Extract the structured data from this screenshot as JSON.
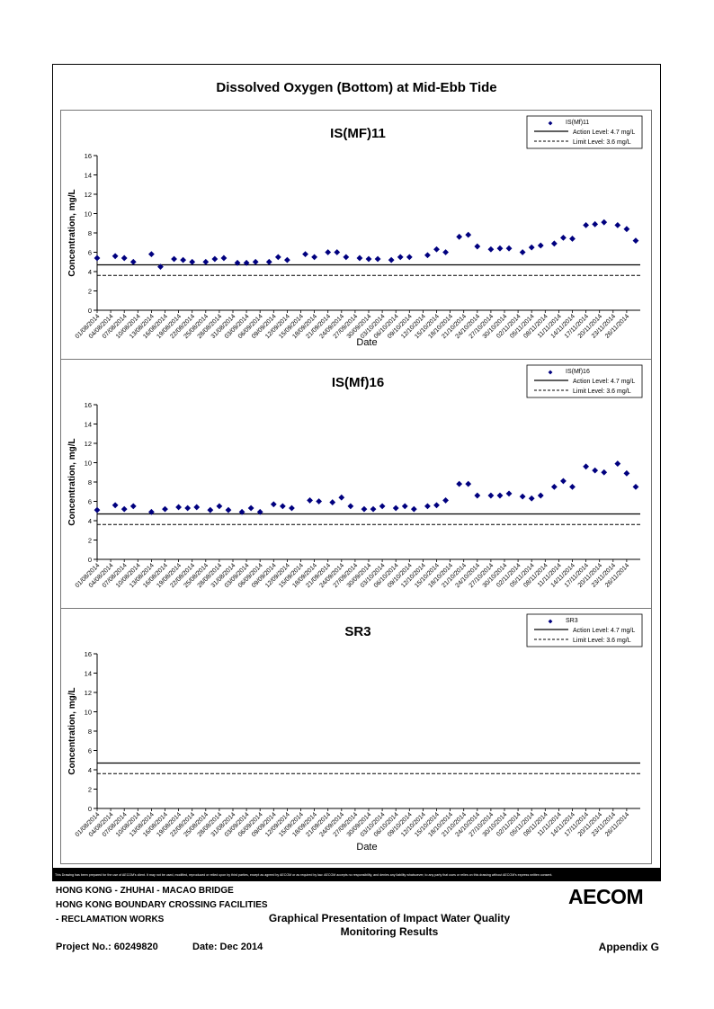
{
  "page": {
    "title": "Dissolved Oxygen (Bottom) at Mid-Ebb Tide",
    "disclaimer": "This Drawing has been prepared for the use of AECOM's client. It may not be used, modified, reproduced or relied upon by third parties, except as agreed by AECOM or as required by law. AECOM accepts no responsibility, and denies any liability whatsoever, to any party that uses or relies on this drawing without AECOM's express written consent.",
    "footer": {
      "line1": "HONG KONG - ZHUHAI - MACAO BRIDGE",
      "line2": "HONG KONG BOUNDARY CROSSING FACILITIES",
      "line3": "- RECLAMATION WORKS",
      "center_line1": "Graphical Presentation of Impact Water Quality",
      "center_line2": "Monitoring Results",
      "project_no": "Project No.: 60249820",
      "date": "Date: Dec 2014",
      "appendix": "Appendix G",
      "logo": "AECOM"
    },
    "colors": {
      "marker": "#00007f",
      "line": "#000000",
      "border": "#777777"
    }
  },
  "chart_data": [
    {
      "type": "scatter",
      "title": "IS(MF)11",
      "xlabel": "Date",
      "ylabel": "Concentration, mg/L",
      "ylim": [
        0,
        16
      ],
      "yticks": [
        0,
        2,
        4,
        6,
        8,
        10,
        12,
        14,
        16
      ],
      "xlim": [
        "2014-08-01",
        "2014-11-29"
      ],
      "x_tick_labels": [
        "01/08/2014",
        "04/08/2014",
        "07/08/2014",
        "10/08/2014",
        "13/08/2014",
        "16/08/2014",
        "19/08/2014",
        "22/08/2014",
        "25/08/2014",
        "28/08/2014",
        "31/08/2014",
        "03/09/2014",
        "06/09/2014",
        "09/09/2014",
        "12/09/2014",
        "15/09/2014",
        "18/09/2014",
        "21/09/2014",
        "24/09/2014",
        "27/09/2014",
        "30/09/2014",
        "03/10/2014",
        "06/10/2014",
        "09/10/2014",
        "12/10/2014",
        "15/10/2014",
        "18/10/2014",
        "21/10/2014",
        "24/10/2014",
        "27/10/2014",
        "30/10/2014",
        "02/11/2014",
        "05/11/2014",
        "08/11/2014",
        "11/11/2014",
        "14/11/2014",
        "17/11/2014",
        "20/11/2014",
        "23/11/2014",
        "26/11/2014"
      ],
      "legend_position": "top-right",
      "legend": [
        "IS(Mf)11",
        "Action Level: 4.7 mg/L",
        "Limit Level: 3.6 mg/L"
      ],
      "action_level": 4.7,
      "limit_level": 3.6,
      "series": [
        {
          "name": "IS(Mf)11",
          "marker": "diamond",
          "x": [
            "2014-08-01",
            "2014-08-05",
            "2014-08-07",
            "2014-08-09",
            "2014-08-13",
            "2014-08-15",
            "2014-08-18",
            "2014-08-20",
            "2014-08-22",
            "2014-08-25",
            "2014-08-27",
            "2014-08-29",
            "2014-09-01",
            "2014-09-03",
            "2014-09-05",
            "2014-09-08",
            "2014-09-10",
            "2014-09-12",
            "2014-09-16",
            "2014-09-18",
            "2014-09-21",
            "2014-09-23",
            "2014-09-25",
            "2014-09-28",
            "2014-09-30",
            "2014-10-02",
            "2014-10-05",
            "2014-10-07",
            "2014-10-09",
            "2014-10-13",
            "2014-10-15",
            "2014-10-17",
            "2014-10-20",
            "2014-10-22",
            "2014-10-24",
            "2014-10-27",
            "2014-10-29",
            "2014-10-31",
            "2014-11-03",
            "2014-11-05",
            "2014-11-07",
            "2014-11-10",
            "2014-11-12",
            "2014-11-14",
            "2014-11-17",
            "2014-11-19",
            "2014-11-21",
            "2014-11-24",
            "2014-11-26",
            "2014-11-28"
          ],
          "y": [
            5.4,
            5.6,
            5.4,
            5.0,
            5.8,
            4.5,
            5.3,
            5.2,
            5.0,
            5.0,
            5.3,
            5.4,
            4.9,
            4.9,
            5.0,
            5.0,
            5.5,
            5.2,
            5.8,
            5.5,
            6.0,
            6.0,
            5.5,
            5.4,
            5.3,
            5.3,
            5.2,
            5.5,
            5.5,
            5.7,
            6.3,
            6.0,
            7.6,
            7.8,
            6.6,
            6.3,
            6.4,
            6.4,
            6.0,
            6.5,
            6.7,
            6.9,
            7.5,
            7.4,
            8.8,
            8.9,
            9.1,
            8.8,
            8.4,
            7.2
          ]
        }
      ]
    },
    {
      "type": "scatter",
      "title": "IS(Mf)16",
      "xlabel": "",
      "ylabel": "Concentration, mg/L",
      "ylim": [
        0,
        16
      ],
      "yticks": [
        0,
        2,
        4,
        6,
        8,
        10,
        12,
        14,
        16
      ],
      "xlim": [
        "2014-08-01",
        "2014-11-29"
      ],
      "x_tick_labels": [
        "01/08/2014",
        "04/08/2014",
        "07/08/2014",
        "10/08/2014",
        "13/08/2014",
        "16/08/2014",
        "19/08/2014",
        "22/08/2014",
        "25/08/2014",
        "28/08/2014",
        "31/08/2014",
        "03/09/2014",
        "06/09/2014",
        "09/09/2014",
        "12/09/2014",
        "15/09/2014",
        "18/09/2014",
        "21/09/2014",
        "24/09/2014",
        "27/09/2014",
        "30/09/2014",
        "03/10/2014",
        "06/10/2014",
        "09/10/2014",
        "12/10/2014",
        "15/10/2014",
        "18/10/2014",
        "21/10/2014",
        "24/10/2014",
        "27/10/2014",
        "30/10/2014",
        "02/11/2014",
        "05/11/2014",
        "08/11/2014",
        "11/11/2014",
        "14/11/2014",
        "17/11/2014",
        "20/11/2014",
        "23/11/2014",
        "26/11/2014"
      ],
      "legend_position": "top-right",
      "legend": [
        "IS(Mf)16",
        "Action Level: 4.7 mg/L",
        "Limit Level: 3.6 mg/L"
      ],
      "action_level": 4.7,
      "limit_level": 3.6,
      "series": [
        {
          "name": "IS(Mf)16",
          "marker": "diamond",
          "x": [
            "2014-08-01",
            "2014-08-05",
            "2014-08-07",
            "2014-08-09",
            "2014-08-13",
            "2014-08-16",
            "2014-08-19",
            "2014-08-21",
            "2014-08-23",
            "2014-08-26",
            "2014-08-28",
            "2014-08-30",
            "2014-09-02",
            "2014-09-04",
            "2014-09-06",
            "2014-09-09",
            "2014-09-11",
            "2014-09-13",
            "2014-09-17",
            "2014-09-19",
            "2014-09-22",
            "2014-09-24",
            "2014-09-26",
            "2014-09-29",
            "2014-10-01",
            "2014-10-03",
            "2014-10-06",
            "2014-10-08",
            "2014-10-10",
            "2014-10-13",
            "2014-10-15",
            "2014-10-17",
            "2014-10-20",
            "2014-10-22",
            "2014-10-24",
            "2014-10-27",
            "2014-10-29",
            "2014-10-31",
            "2014-11-03",
            "2014-11-05",
            "2014-11-07",
            "2014-11-10",
            "2014-11-12",
            "2014-11-14",
            "2014-11-17",
            "2014-11-19",
            "2014-11-21",
            "2014-11-24",
            "2014-11-26",
            "2014-11-28"
          ],
          "y": [
            5.1,
            5.6,
            5.2,
            5.5,
            4.9,
            5.2,
            5.4,
            5.3,
            5.4,
            5.1,
            5.5,
            5.1,
            4.9,
            5.3,
            4.9,
            5.7,
            5.5,
            5.3,
            6.1,
            6.0,
            5.9,
            6.4,
            5.5,
            5.2,
            5.2,
            5.5,
            5.3,
            5.5,
            5.2,
            5.5,
            5.6,
            6.1,
            7.8,
            7.8,
            6.6,
            6.6,
            6.6,
            6.8,
            6.5,
            6.3,
            6.6,
            7.5,
            8.1,
            7.5,
            9.6,
            9.2,
            9.0,
            9.9,
            8.9,
            7.5
          ]
        }
      ]
    },
    {
      "type": "scatter",
      "title": "SR3",
      "xlabel": "Date",
      "ylabel": "Concentration, mg/L",
      "ylim": [
        0,
        16
      ],
      "yticks": [
        0,
        2,
        4,
        6,
        8,
        10,
        12,
        14,
        16
      ],
      "xlim": [
        "2014-08-01",
        "2014-11-29"
      ],
      "x_tick_labels": [
        "01/08/2014",
        "04/08/2014",
        "07/08/2014",
        "10/08/2014",
        "13/08/2014",
        "16/08/2014",
        "19/08/2014",
        "22/08/2014",
        "25/08/2014",
        "28/08/2014",
        "31/08/2014",
        "03/09/2014",
        "06/09/2014",
        "09/09/2014",
        "12/09/2014",
        "15/09/2014",
        "18/09/2014",
        "21/09/2014",
        "24/09/2014",
        "27/09/2014",
        "30/09/2014",
        "03/10/2014",
        "06/10/2014",
        "09/10/2014",
        "12/10/2014",
        "15/10/2014",
        "18/10/2014",
        "21/10/2014",
        "24/10/2014",
        "27/10/2014",
        "30/10/2014",
        "02/11/2014",
        "05/11/2014",
        "08/11/2014",
        "11/11/2014",
        "14/11/2014",
        "17/11/2014",
        "20/11/2014",
        "23/11/2014",
        "26/11/2014"
      ],
      "legend_position": "top-right",
      "legend": [
        "SR3",
        "Action Level: 4.7 mg/L",
        "Limit Level: 3.6 mg/L"
      ],
      "action_level": 4.7,
      "limit_level": 3.6,
      "series": [
        {
          "name": "SR3",
          "marker": "diamond",
          "x": [],
          "y": []
        }
      ]
    }
  ]
}
